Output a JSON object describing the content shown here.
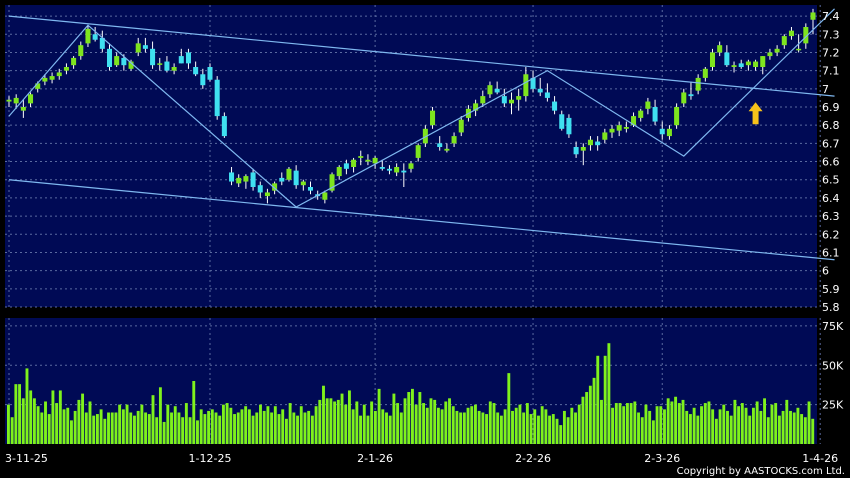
{
  "copyright": "Copyright by AASTOCKS.com Ltd.",
  "colors": {
    "panel_bg": "#000a55",
    "grid": "#5a6aa0",
    "up_candle": "#7ee51e",
    "down_candle": "#3fe0f0",
    "trendline": "#7fb8f0",
    "volume_bar": "#7ff21c",
    "arrow": "#f7c21a",
    "axis_text": "#ffffff"
  },
  "chart_data": [
    {
      "type": "candlestick",
      "title": "",
      "ylim": [
        5.8,
        7.45
      ],
      "y_ticks": [
        "7.4",
        "7.3",
        "7.2",
        "7.1",
        "7",
        "6.9",
        "6.8",
        "6.7",
        "6.6",
        "6.5",
        "6.4",
        "6.3",
        "6.2",
        "6.1",
        "6",
        "5.9",
        "5.8"
      ],
      "grid": true,
      "x_dates": [
        "3-11-25",
        "1-12-25",
        "2-1-26",
        "2-2-26",
        "2-3-26",
        "1-4-26"
      ],
      "x_date_index": [
        0,
        28,
        51,
        73,
        91,
        113
      ],
      "candles": [
        [
          6.93,
          6.96,
          6.9,
          6.94
        ],
        [
          6.92,
          6.97,
          6.89,
          6.95
        ],
        [
          6.88,
          6.94,
          6.84,
          6.9
        ],
        [
          6.92,
          6.98,
          6.9,
          6.97
        ],
        [
          7.0,
          7.04,
          6.98,
          7.03
        ],
        [
          7.04,
          7.08,
          7.02,
          7.06
        ],
        [
          7.05,
          7.09,
          7.03,
          7.07
        ],
        [
          7.07,
          7.11,
          7.05,
          7.09
        ],
        [
          7.1,
          7.14,
          7.08,
          7.12
        ],
        [
          7.13,
          7.18,
          7.11,
          7.17
        ],
        [
          7.18,
          7.26,
          7.16,
          7.24
        ],
        [
          7.25,
          7.35,
          7.23,
          7.33
        ],
        [
          7.3,
          7.34,
          7.26,
          7.27
        ],
        [
          7.28,
          7.32,
          7.2,
          7.22
        ],
        [
          7.22,
          7.25,
          7.1,
          7.12
        ],
        [
          7.13,
          7.2,
          7.12,
          7.18
        ],
        [
          7.17,
          7.19,
          7.1,
          7.13
        ],
        [
          7.11,
          7.16,
          7.1,
          7.15
        ],
        [
          7.2,
          7.28,
          7.18,
          7.25
        ],
        [
          7.24,
          7.28,
          7.2,
          7.22
        ],
        [
          7.22,
          7.26,
          7.11,
          7.13
        ],
        [
          7.14,
          7.17,
          7.1,
          7.14
        ],
        [
          7.15,
          7.18,
          7.09,
          7.1
        ],
        [
          7.1,
          7.14,
          7.08,
          7.12
        ],
        [
          7.18,
          7.22,
          7.14,
          7.14
        ],
        [
          7.2,
          7.22,
          7.11,
          7.14
        ],
        [
          7.12,
          7.15,
          7.07,
          7.08
        ],
        [
          7.08,
          7.11,
          7.0,
          7.02
        ],
        [
          7.12,
          7.14,
          7.04,
          7.05
        ],
        [
          7.05,
          7.07,
          6.83,
          6.85
        ],
        [
          6.85,
          6.87,
          6.73,
          6.74
        ],
        [
          6.54,
          6.57,
          6.47,
          6.49
        ],
        [
          6.48,
          6.53,
          6.46,
          6.51
        ],
        [
          6.49,
          6.53,
          6.45,
          6.52
        ],
        [
          6.54,
          6.56,
          6.44,
          6.46
        ],
        [
          6.47,
          6.49,
          6.4,
          6.43
        ],
        [
          6.41,
          6.45,
          6.37,
          6.43
        ],
        [
          6.44,
          6.49,
          6.42,
          6.48
        ],
        [
          6.51,
          6.54,
          6.47,
          6.49
        ],
        [
          6.5,
          6.57,
          6.49,
          6.56
        ],
        [
          6.55,
          6.58,
          6.45,
          6.47
        ],
        [
          6.47,
          6.5,
          6.44,
          6.49
        ],
        [
          6.46,
          6.49,
          6.42,
          6.44
        ],
        [
          6.42,
          6.44,
          6.39,
          6.41
        ],
        [
          6.39,
          6.44,
          6.37,
          6.43
        ],
        [
          6.44,
          6.54,
          6.43,
          6.53
        ],
        [
          6.52,
          6.58,
          6.5,
          6.57
        ],
        [
          6.59,
          6.61,
          6.53,
          6.56
        ],
        [
          6.57,
          6.62,
          6.54,
          6.61
        ],
        [
          6.62,
          6.66,
          6.58,
          6.63
        ],
        [
          6.6,
          6.64,
          6.58,
          6.61
        ],
        [
          6.59,
          6.63,
          6.56,
          6.62
        ],
        [
          6.57,
          6.61,
          6.55,
          6.56
        ],
        [
          6.56,
          6.58,
          6.53,
          6.55
        ],
        [
          6.54,
          6.59,
          6.52,
          6.57
        ],
        [
          6.55,
          6.59,
          6.46,
          6.54
        ],
        [
          6.56,
          6.6,
          6.54,
          6.59
        ],
        [
          6.62,
          6.7,
          6.6,
          6.69
        ],
        [
          6.7,
          6.8,
          6.68,
          6.78
        ],
        [
          6.8,
          6.9,
          6.78,
          6.88
        ],
        [
          6.7,
          6.74,
          6.66,
          6.68
        ],
        [
          6.66,
          6.7,
          6.65,
          6.67
        ],
        [
          6.7,
          6.76,
          6.68,
          6.74
        ],
        [
          6.76,
          6.85,
          6.74,
          6.83
        ],
        [
          6.84,
          6.91,
          6.82,
          6.89
        ],
        [
          6.88,
          6.94,
          6.85,
          6.92
        ],
        [
          6.92,
          6.99,
          6.9,
          6.96
        ],
        [
          6.97,
          7.04,
          6.95,
          7.02
        ],
        [
          7.0,
          7.04,
          6.97,
          6.98
        ],
        [
          6.96,
          7.0,
          6.9,
          6.92
        ],
        [
          6.92,
          6.98,
          6.86,
          6.94
        ],
        [
          6.94,
          7.0,
          6.88,
          6.96
        ],
        [
          6.96,
          7.12,
          6.93,
          7.08
        ],
        [
          7.06,
          7.1,
          6.98,
          7.0
        ],
        [
          7.0,
          7.06,
          6.96,
          6.98
        ],
        [
          6.98,
          7.03,
          6.93,
          6.95
        ],
        [
          6.93,
          6.96,
          6.86,
          6.88
        ],
        [
          6.86,
          6.88,
          6.77,
          6.78
        ],
        [
          6.84,
          6.86,
          6.73,
          6.75
        ],
        [
          6.68,
          6.71,
          6.62,
          6.64
        ],
        [
          6.66,
          6.7,
          6.58,
          6.68
        ],
        [
          6.69,
          6.74,
          6.66,
          6.72
        ],
        [
          6.71,
          6.74,
          6.66,
          6.69
        ],
        [
          6.72,
          6.78,
          6.7,
          6.76
        ],
        [
          6.76,
          6.8,
          6.73,
          6.78
        ],
        [
          6.77,
          6.82,
          6.74,
          6.8
        ],
        [
          6.78,
          6.82,
          6.76,
          6.79
        ],
        [
          6.8,
          6.87,
          6.79,
          6.85
        ],
        [
          6.84,
          6.89,
          6.82,
          6.88
        ],
        [
          6.89,
          6.95,
          6.86,
          6.93
        ],
        [
          6.9,
          6.94,
          6.8,
          6.82
        ],
        [
          6.78,
          6.82,
          6.72,
          6.75
        ],
        [
          6.74,
          6.8,
          6.72,
          6.78
        ],
        [
          6.8,
          6.92,
          6.78,
          6.9
        ],
        [
          6.92,
          7.0,
          6.9,
          6.98
        ],
        [
          6.97,
          7.04,
          6.94,
          6.96
        ],
        [
          6.99,
          7.08,
          6.97,
          7.06
        ],
        [
          7.06,
          7.12,
          7.04,
          7.11
        ],
        [
          7.12,
          7.22,
          7.1,
          7.2
        ],
        [
          7.2,
          7.26,
          7.18,
          7.24
        ],
        [
          7.2,
          7.24,
          7.12,
          7.13
        ],
        [
          7.12,
          7.15,
          7.09,
          7.13
        ],
        [
          7.14,
          7.16,
          7.11,
          7.12
        ],
        [
          7.13,
          7.16,
          7.1,
          7.15
        ],
        [
          7.12,
          7.16,
          7.1,
          7.15
        ],
        [
          7.12,
          7.18,
          7.08,
          7.18
        ],
        [
          7.18,
          7.22,
          7.16,
          7.2
        ],
        [
          7.2,
          7.24,
          7.18,
          7.22
        ],
        [
          7.24,
          7.3,
          7.22,
          7.29
        ],
        [
          7.29,
          7.34,
          7.27,
          7.32
        ],
        [
          7.22,
          7.3,
          7.2,
          7.22
        ],
        [
          7.25,
          7.36,
          7.22,
          7.34
        ],
        [
          7.38,
          7.44,
          7.3,
          7.42
        ]
      ],
      "trendlines": [
        {
          "points": [
            [
              0,
              7.4
            ],
            [
              115,
              6.96
            ]
          ]
        },
        {
          "points": [
            [
              0,
              6.5
            ],
            [
              115,
              6.06
            ]
          ]
        },
        {
          "points": [
            [
              0,
              6.85
            ],
            [
              11,
              7.35
            ],
            [
              40,
              6.35
            ],
            [
              75,
              7.1
            ],
            [
              94,
              6.63
            ],
            [
              115,
              7.44
            ]
          ]
        }
      ],
      "markers": [
        {
          "type": "arrow-up",
          "index": 104,
          "value": 6.86
        }
      ]
    },
    {
      "type": "bar",
      "title": "",
      "ylim": [
        0,
        80000
      ],
      "y_ticks": [
        "75K",
        "50K",
        "25K"
      ],
      "grid": true,
      "values": [
        25,
        17,
        38,
        38,
        29,
        48,
        34,
        29,
        24,
        20,
        27,
        19,
        34,
        26,
        34,
        22,
        23,
        15,
        21,
        28,
        32,
        20,
        27,
        18,
        19,
        22,
        16,
        20,
        20,
        20,
        25,
        22,
        25,
        20,
        18,
        21,
        25,
        20,
        19,
        31,
        17,
        36,
        14,
        25,
        20,
        24,
        20,
        17,
        26,
        17,
        40,
        15,
        22,
        19,
        21,
        22,
        20,
        18,
        25,
        26,
        23,
        19,
        20,
        22,
        24,
        22,
        18,
        20,
        25,
        21,
        24,
        20,
        24,
        19,
        22,
        16,
        26,
        20,
        18,
        24,
        20,
        21,
        18,
        24,
        28,
        37,
        29,
        29,
        27,
        28,
        32,
        25,
        34,
        22,
        27,
        18,
        25,
        18,
        27,
        21,
        35,
        22,
        20,
        18,
        32,
        26,
        20,
        29,
        33,
        35,
        25,
        33,
        26,
        23,
        29,
        28,
        23,
        22,
        27,
        29,
        24,
        21,
        20,
        20,
        23,
        24,
        25,
        21,
        20,
        19,
        27,
        26,
        20,
        18,
        22,
        45,
        21,
        23,
        25,
        20,
        26,
        19,
        22,
        18,
        24,
        22,
        18,
        19,
        16,
        12,
        21,
        17,
        23,
        20,
        25,
        30,
        33,
        37,
        42,
        56,
        28,
        56,
        64,
        23,
        26,
        26,
        24,
        26,
        26,
        27,
        20,
        17,
        25,
        21,
        15,
        24,
        24,
        22,
        29,
        27,
        30,
        26,
        28,
        21,
        19,
        23,
        18,
        24,
        26,
        27,
        22,
        16,
        22,
        25,
        21,
        18,
        28,
        24,
        26,
        23,
        18,
        23,
        27,
        21,
        29,
        17,
        25,
        26,
        18,
        21,
        28,
        21,
        20,
        23,
        19,
        17,
        27,
        16
      ]
    }
  ]
}
